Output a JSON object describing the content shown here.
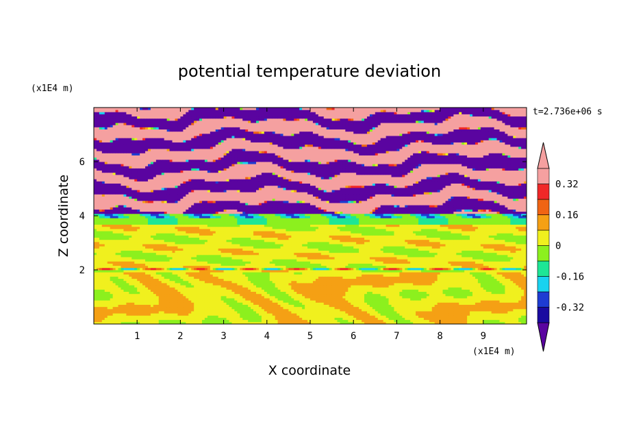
{
  "chart_data": {
    "type": "heatmap",
    "title": "potential temperature deviation",
    "xlabel": "X coordinate",
    "ylabel": "Z coordinate",
    "x_unit": "(x1E4 m)",
    "y_unit": "(x1E4 m)",
    "time_label": "t=2.736e+06 s",
    "xlim": [
      0,
      10
    ],
    "ylim": [
      0,
      8
    ],
    "x_ticks": [
      1,
      2,
      3,
      4,
      5,
      6,
      7,
      8,
      9
    ],
    "y_ticks": [
      2,
      4,
      6
    ],
    "x_tick_labels": [
      "1",
      "2",
      "3",
      "4",
      "5",
      "6",
      "7",
      "8",
      "9"
    ],
    "y_tick_labels": [
      "2",
      "4",
      "6"
    ],
    "colorbar": {
      "levels": [
        -0.4,
        -0.32,
        -0.24,
        -0.16,
        -0.08,
        0,
        0.08,
        0.16,
        0.24,
        0.32,
        0.4
      ],
      "colors": [
        "#5a04a0",
        "#1a0aa0",
        "#1e3cd2",
        "#19d2f0",
        "#1ee696",
        "#8cf01e",
        "#f0f01e",
        "#f5a014",
        "#f06414",
        "#f02828",
        "#f5a0a0"
      ],
      "tick_labels": [
        "0.32",
        "0.16",
        "0",
        "-0.16",
        "-0.32"
      ]
    },
    "layers": [
      {
        "z_range": [
          0,
          2
        ],
        "description": "mostly near 0 to slightly positive with eddies"
      },
      {
        "z_range": [
          2,
          4
        ],
        "description": "bands near 0"
      },
      {
        "z_range": [
          4,
          8
        ],
        "description": "alternating strongly positive and strongly negative bands"
      }
    ]
  }
}
